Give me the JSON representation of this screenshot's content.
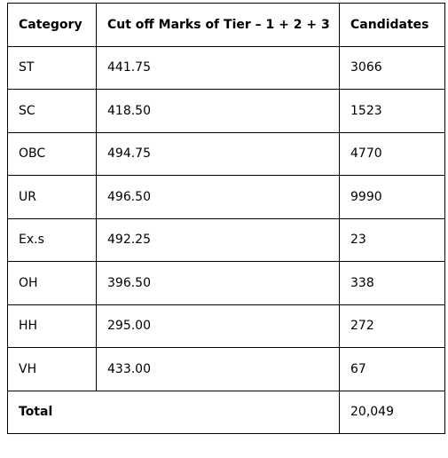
{
  "table": {
    "headers": [
      "Category",
      "Cut off Marks of Tier – 1 + 2 + 3",
      "Candidates"
    ],
    "rows": [
      {
        "category": "ST",
        "marks": "441.75",
        "candidates": "3066"
      },
      {
        "category": "SC",
        "marks": "418.50",
        "candidates": "1523"
      },
      {
        "category": "OBC",
        "marks": "494.75",
        "candidates": "4770"
      },
      {
        "category": "UR",
        "marks": "496.50",
        "candidates": "9990"
      },
      {
        "category": "Ex.s",
        "marks": "492.25",
        "candidates": "23"
      },
      {
        "category": "OH",
        "marks": "396.50",
        "candidates": "338"
      },
      {
        "category": "HH",
        "marks": "295.00",
        "candidates": "272"
      },
      {
        "category": "VH",
        "marks": "433.00",
        "candidates": "67"
      }
    ],
    "total": {
      "label": "Total",
      "candidates": "20,049"
    }
  }
}
